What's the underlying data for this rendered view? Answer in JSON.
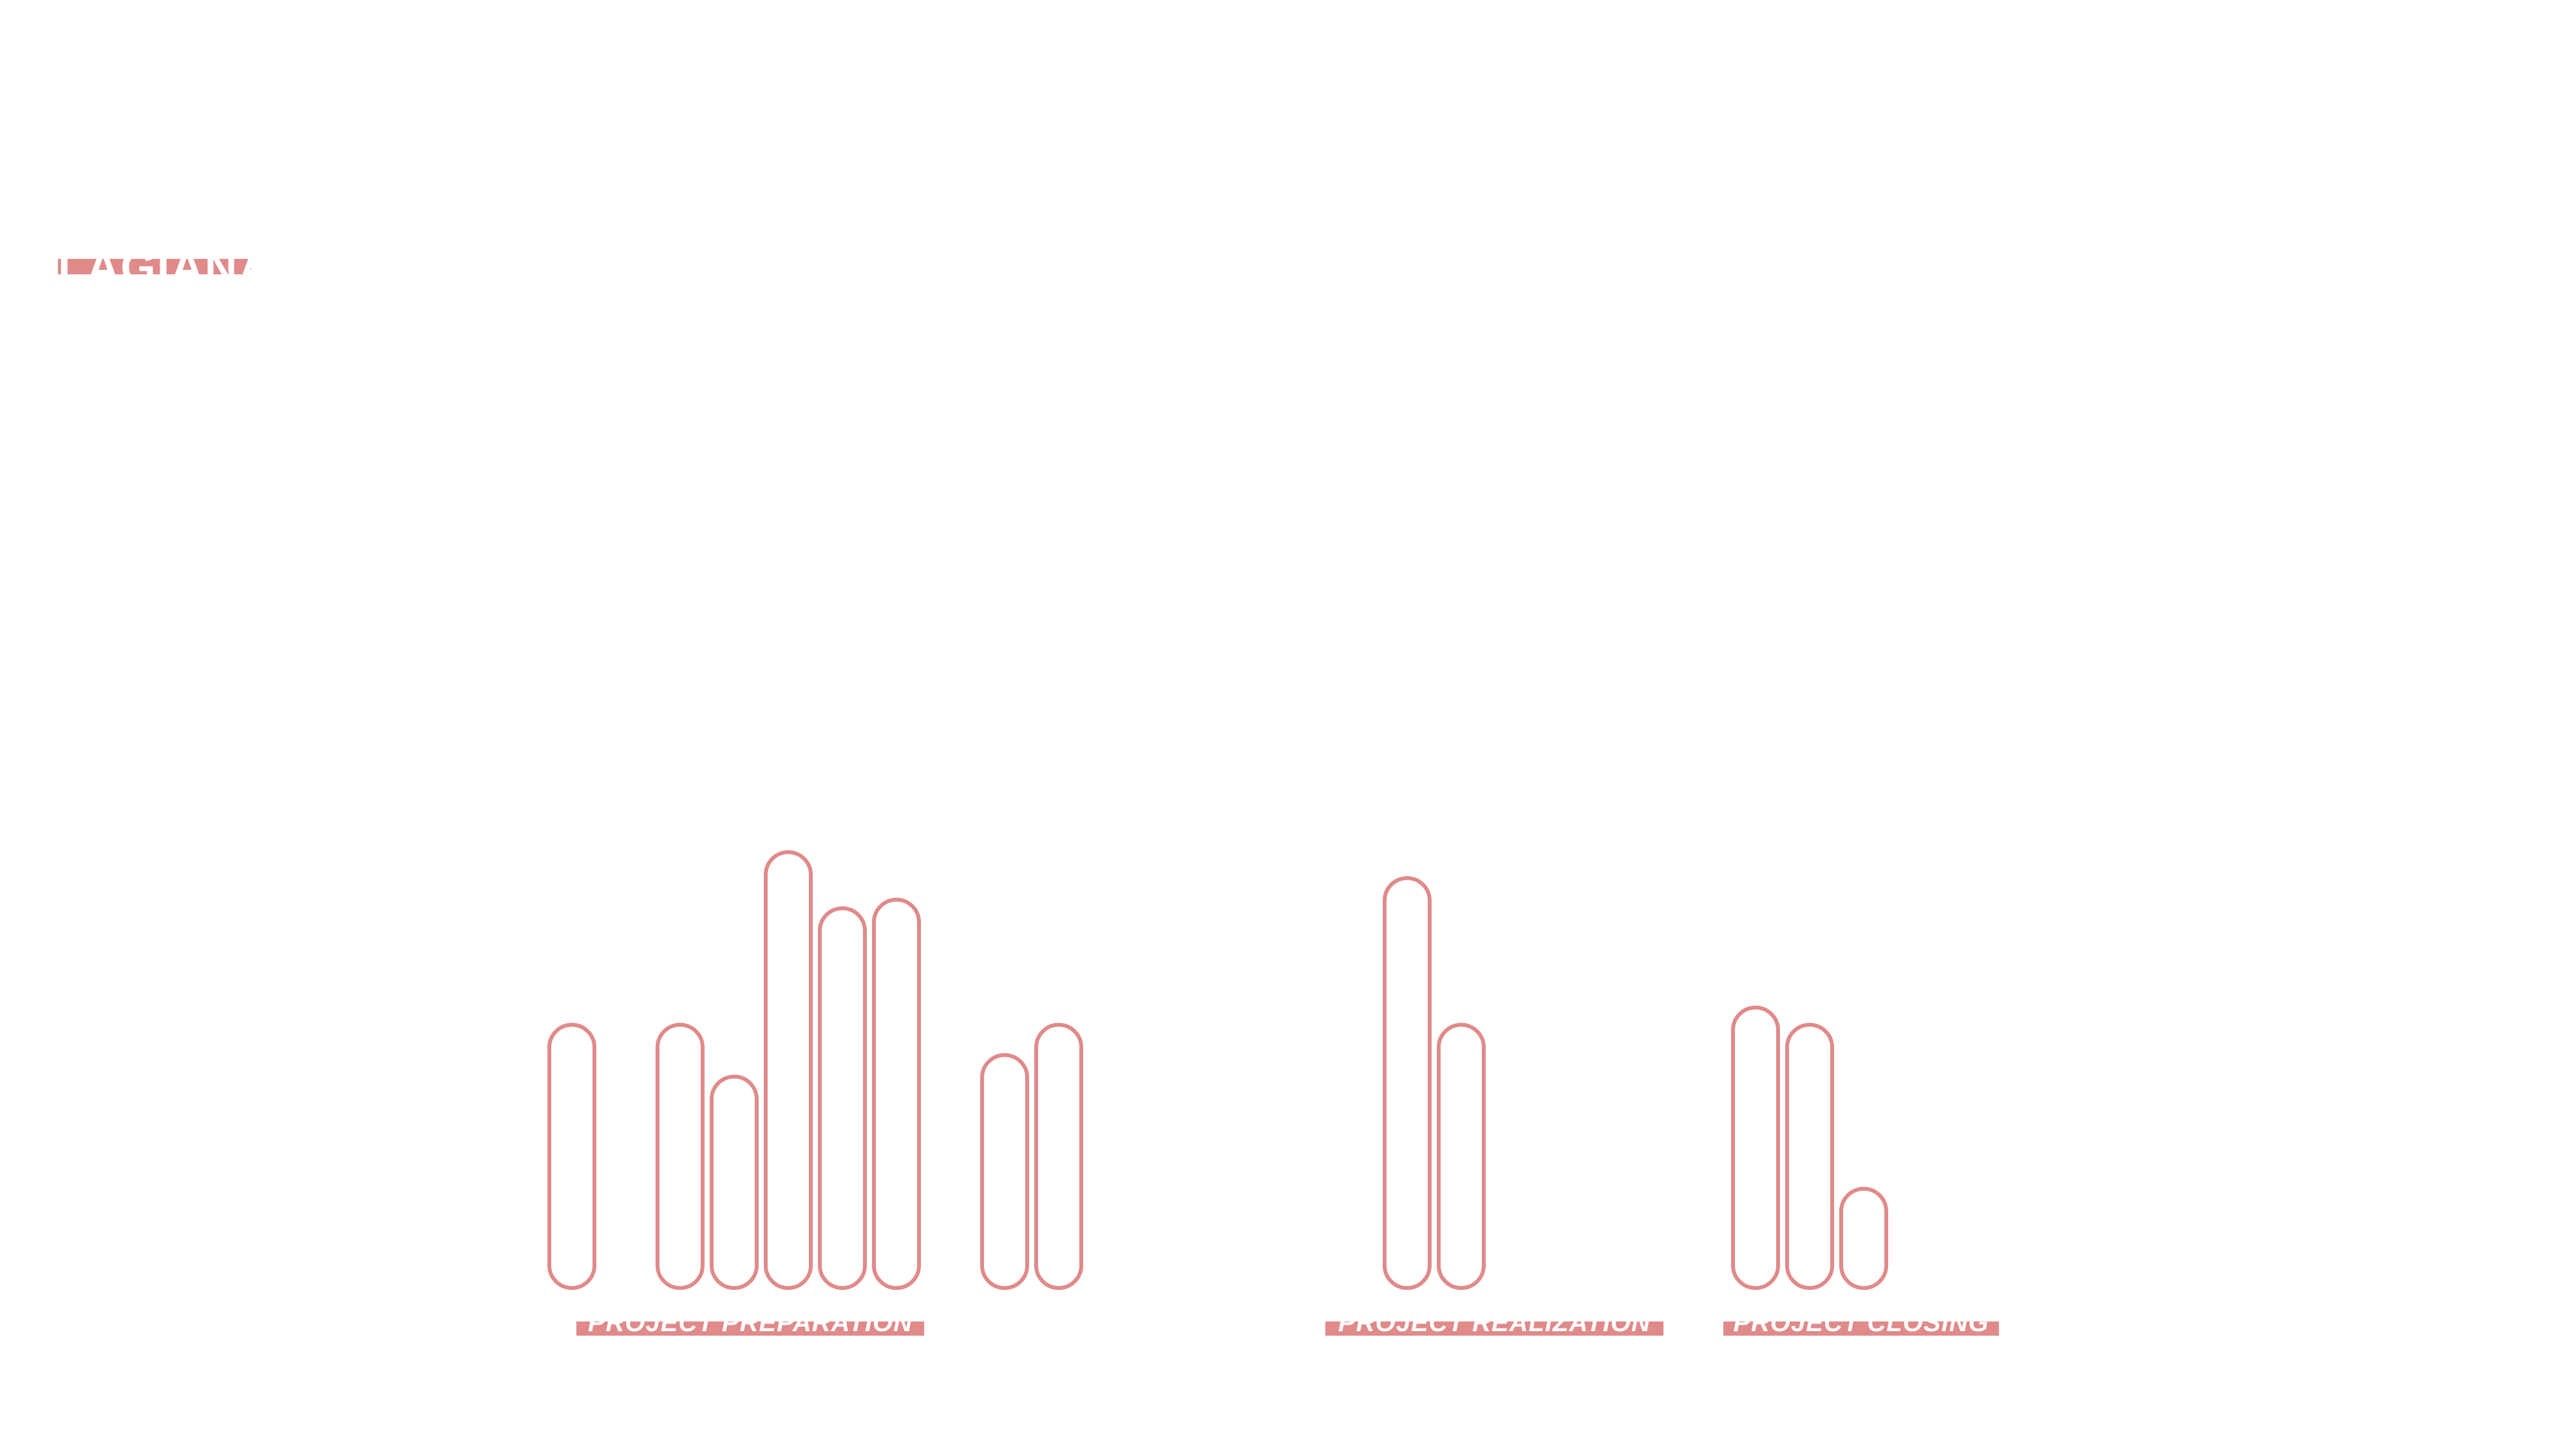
{
  "title": "LAGIANA",
  "chart_data": {
    "type": "bar",
    "style": "outlined rounded bars",
    "bar_color": "#e08a8a",
    "groups": [
      {
        "label": "PROJECT PREPARATION",
        "values": [
          61,
          0,
          61,
          49,
          101,
          88,
          90,
          0,
          54,
          61
        ]
      },
      {
        "label": "PROJECT REALIZATION",
        "values": [
          95,
          61
        ]
      },
      {
        "label": "PROJECT CLOSING",
        "values": [
          65,
          61,
          23
        ]
      }
    ]
  }
}
